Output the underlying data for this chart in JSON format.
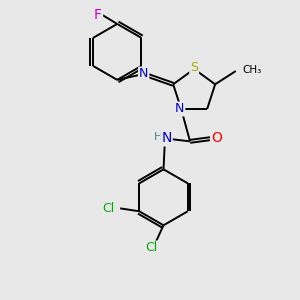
{
  "background_color": "#e8e8e8",
  "bond_color": "#000000",
  "atom_colors": {
    "S": "#aaaa00",
    "N": "#0000cc",
    "O": "#ff0000",
    "F": "#cc00cc",
    "Cl": "#00aa00",
    "C": "#000000",
    "H": "#448888"
  },
  "font_size": 9,
  "figsize": [
    3.0,
    3.0
  ],
  "dpi": 100,
  "lw": 1.4
}
